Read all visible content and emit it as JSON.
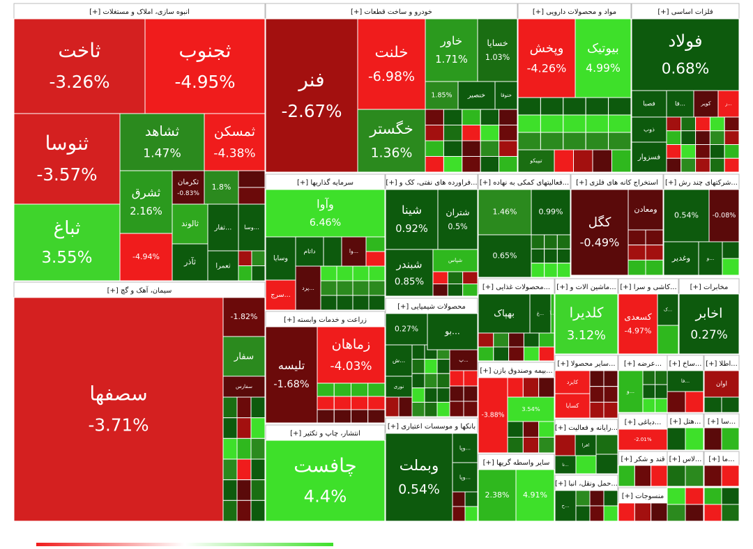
{
  "sectors": [
    {
      "title": "انبوه سازی، املاک و مستغلات [+]",
      "tiles": [
        {
          "name": "ثاخت",
          "change": "-3.26%",
          "color": "#d42020"
        },
        {
          "name": "ثجنوب",
          "change": "-4.95%",
          "color": "#f01c1c"
        },
        {
          "name": "ثنوسا",
          "change": "-3.57%",
          "color": "#d42020"
        },
        {
          "name": "ثباغ",
          "change": "3.55%",
          "color": "#3fd42c"
        },
        {
          "name": "ثشاهد",
          "change": "1.47%",
          "color": "#2b8a1e"
        },
        {
          "name": "ثمسکن",
          "change": "-4.38%",
          "color": "#f01c1c"
        },
        {
          "name": "ثشرق",
          "change": "2.16%",
          "color": "#2b9a1e"
        },
        {
          "name": "ثکرمان",
          "change": "-0.83%",
          "color": "#5a0a0a"
        },
        {
          "name": "ثالوند",
          "color": "#2fa81e"
        },
        {
          "name": "...ثفار",
          "color": "#0d5a0d"
        },
        {
          "name": "...وسا",
          "color": "#0d5a0d"
        },
        {
          "name": "ثعمرا",
          "color": "#0d5a0d"
        },
        {
          "name": "ثآذر",
          "color": "#0d5a0d"
        },
        {
          "change": "-4.94%",
          "color": "#f01c1c"
        },
        {
          "change": "1.8%",
          "color": "#2b8a1e"
        }
      ]
    },
    {
      "title": "سیمان، آهک و گچ [+]",
      "tiles": [
        {
          "name": "سصفها",
          "change": "-3.71%",
          "color": "#d42020"
        },
        {
          "change": "-1.82%",
          "color": "#6b0a0a"
        },
        {
          "name": "سفار",
          "color": "#2b8a1e"
        },
        {
          "name": "سفارس",
          "color": "#5a0a0a"
        }
      ]
    },
    {
      "title": "خودرو و ساخت قطعات [+]",
      "tiles": [
        {
          "name": "فنر",
          "change": "-2.67%",
          "color": "#a3100f"
        },
        {
          "name": "خلنت",
          "change": "-6.98%",
          "color": "#f01c1c"
        },
        {
          "name": "خگستر",
          "change": "1.36%",
          "color": "#2b8a1e"
        },
        {
          "name": "خاور",
          "change": "1.71%",
          "color": "#2b9a1e"
        },
        {
          "name": "خسایا",
          "change": "1.03%",
          "color": "#1a6e12"
        },
        {
          "change": "1.85%",
          "color": "#2b8a1e"
        },
        {
          "name": "خنصیر",
          "color": "#0d5a0d"
        },
        {
          "name": "ختوقا",
          "color": "#0d5a0d"
        }
      ]
    },
    {
      "title": "مواد و محصولات دارویی [+]",
      "tiles": [
        {
          "name": "وپخش",
          "change": "-4.26%",
          "color": "#f01c1c"
        },
        {
          "name": "بیوتیک",
          "change": "4.99%",
          "color": "#3ee02a"
        },
        {
          "name": "تیپیکو",
          "color": "#1a6e12"
        }
      ]
    },
    {
      "title": "فلزات اساسی [+]",
      "tiles": [
        {
          "name": "فولاد",
          "change": "0.68%",
          "color": "#0d5a0d"
        },
        {
          "name": "فصبا",
          "color": "#0d5a0d"
        },
        {
          "name": "ذوب",
          "color": "#0d5a0d"
        },
        {
          "name": "فسزوار",
          "color": "#0d5a0d"
        },
        {
          "name": "کویر",
          "color": "#5a0a0a"
        },
        {
          "name": "...ز",
          "color": "#f01c1c"
        },
        {
          "name": "...فا",
          "color": "#0d5a0d"
        }
      ]
    },
    {
      "title": "سرمایه گذاریها [+]",
      "tiles": [
        {
          "name": "وآوا",
          "change": "6.46%",
          "color": "#3ee02a"
        },
        {
          "name": "وسایا",
          "color": "#0d5a0d"
        },
        {
          "name": "داتام",
          "color": "#0d5a0d"
        },
        {
          "name": "...وا",
          "color": "#5a0a0a"
        },
        {
          "name": "...سرج",
          "color": "#f01c1c"
        },
        {
          "name": "...پرد",
          "color": "#5a0a0a"
        }
      ]
    },
    {
      "title": "زراعت و خدمات وابسته [+]",
      "tiles": [
        {
          "name": "تلیسه",
          "change": "-1.68%",
          "color": "#6b0a0a"
        },
        {
          "name": "زماهان",
          "change": "-4.03%",
          "color": "#f01c1c"
        }
      ]
    },
    {
      "title": "انتشار، چاپ و تکثیر [+]",
      "tiles": [
        {
          "name": "چافست",
          "change": "4.4%",
          "color": "#3ee02a"
        }
      ]
    },
    {
      "title": "...فراورده های نفتی، کک و [+]",
      "tiles": [
        {
          "name": "شینا",
          "change": "0.92%",
          "color": "#0d5a0d"
        },
        {
          "name": "شتران",
          "change": "0.5%",
          "color": "#0d5a0d"
        },
        {
          "name": "شبندر",
          "change": "0.85%",
          "color": "#0d5a0d"
        },
        {
          "name": "شپاس",
          "color": "#2fb81e"
        }
      ]
    },
    {
      "title": "محصولات شیمیایی [+]",
      "tiles": [
        {
          "change": "0.27%",
          "color": "#0d5a0d"
        },
        {
          "name": "...بو",
          "color": "#0d5a0d"
        },
        {
          "name": "...ش",
          "color": "#0d5a0d"
        },
        {
          "name": "نوری",
          "color": "#0d5a0d"
        },
        {
          "name": "...پ",
          "color": "#5a0a0a"
        }
      ]
    },
    {
      "title": "بانکها و موسسات اعتباری [+]",
      "tiles": [
        {
          "name": "وبملت",
          "change": "0.54%",
          "color": "#0d5a0d"
        },
        {
          "name": "...وپا",
          "color": "#0d5a0d"
        },
        {
          "name": "...وپا",
          "color": "#0d5a0d"
        }
      ]
    },
    {
      "title": "...فعالیتهای کمکی به نهاده [+]",
      "tiles": [
        {
          "change": "1.46%",
          "color": "#2b8a1e"
        },
        {
          "change": "0.99%",
          "color": "#0d5a0d"
        },
        {
          "change": "0.65%",
          "color": "#0d5a0d"
        }
      ]
    },
    {
      "title": "استخراج کانه های فلزی [+]",
      "tiles": [
        {
          "name": "کگل",
          "change": "-0.49%",
          "color": "#5a0a0a"
        },
        {
          "name": "ومعادن",
          "color": "#5a0a0a"
        }
      ]
    },
    {
      "title": "...شرکتهای چند رش [+]",
      "tiles": [
        {
          "change": "0.54%",
          "color": "#0d5a0d"
        },
        {
          "change": "-0.08%",
          "color": "#5a0a0a"
        },
        {
          "name": "وغدیر",
          "color": "#0d5a0d"
        },
        {
          "name": "...و",
          "color": "#0d5a0d"
        }
      ]
    },
    {
      "title": "...محصولات غذایی [+]",
      "tiles": [
        {
          "name": "بهپاک",
          "color": "#0d5a0d"
        },
        {
          "name": "...غ",
          "color": "#0d5a0d"
        },
        {
          "name": "...آ",
          "color": "#2fb81e"
        }
      ]
    },
    {
      "title": "...ماشین الات و [+]",
      "tiles": [
        {
          "name": "کلدیرا",
          "change": "3.12%",
          "color": "#3fd42c"
        }
      ]
    },
    {
      "title": "...کاشی و سرا [+]",
      "tiles": [
        {
          "name": "کسعدی",
          "change": "-4.97%",
          "color": "#f01c1c"
        },
        {
          "name": "...ک",
          "color": "#0d5a0d"
        }
      ]
    },
    {
      "title": "مخابرات [+]",
      "tiles": [
        {
          "name": "اخابر",
          "change": "0.27%",
          "color": "#0d5a0d"
        }
      ]
    },
    {
      "title": "...بیمه وصندوق بازن [+]",
      "tiles": [
        {
          "change": "-3.88%",
          "color": "#f01c1c"
        },
        {
          "change": "3.54%",
          "color": "#3ee02a"
        }
      ]
    },
    {
      "title": "سایر واسطه گریها [+]",
      "tiles": [
        {
          "change": "2.38%",
          "color": "#2fb81e"
        },
        {
          "change": "4.91%",
          "color": "#3ee02a"
        }
      ]
    },
    {
      "title": "...سایر محصولا [+]",
      "tiles": [
        {
          "name": "کایزد",
          "color": "#f01c1c"
        },
        {
          "name": "کسایا",
          "color": "#f01c1c"
        }
      ]
    },
    {
      "title": "...عرضه [+]",
      "tiles": [
        {
          "name": "...و",
          "color": "#2fb81e"
        }
      ]
    },
    {
      "title": "...ساخ [+]",
      "tiles": [
        {
          "name": "...فا",
          "color": "#0d5a0d"
        }
      ]
    },
    {
      "title": "...اطلا [+]",
      "tiles": [
        {
          "name": "اوان",
          "color": "#a3100f"
        }
      ]
    },
    {
      "title": "...رایانه و فعالیت [+]",
      "tiles": [
        {
          "name": "افرا",
          "color": "#0d5a0d"
        },
        {
          "name": "...تا",
          "color": "#0d5a0d"
        }
      ]
    },
    {
      "title": "...دباغی [+]",
      "tiles": [
        {
          "change": "-2.01%",
          "color": "#f01c1c"
        }
      ]
    },
    {
      "title": "قند و شکر [+]",
      "tiles": []
    },
    {
      "title": "...حمل ونقل، انبا [+]",
      "tiles": [
        {
          "name": "...ح",
          "color": "#0d5a0d"
        }
      ]
    },
    {
      "title": "منسوجات [+]",
      "tiles": []
    },
    {
      "title": "...هتل [+]",
      "tiles": []
    },
    {
      "title": "...سا [+]",
      "tiles": []
    },
    {
      "title": "...لاس [+]",
      "tiles": []
    },
    {
      "title": "...ما [+]",
      "tiles": []
    }
  ]
}
